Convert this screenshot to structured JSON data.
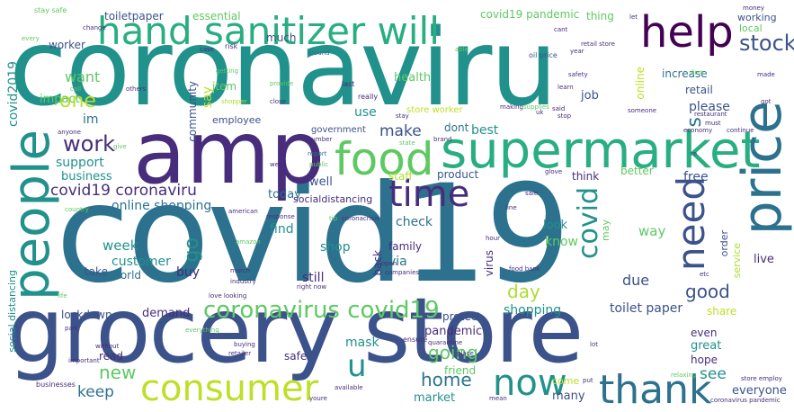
{
  "image_description": "",
  "palette": {
    "teal": "#21918c",
    "teal_dark": "#2c728e",
    "blue": "#3b528b",
    "indigo": "#472d7b",
    "purple": "#440154",
    "green": "#5ec962",
    "green_dark": "#28ae80",
    "lime": "#addc30",
    "yellow_green": "#bddf26",
    "background": "#ffffff"
  },
  "words": {
    "coronaviru": "coronaviru",
    "covid19": "covid19",
    "grocery_store": "grocery store",
    "amp": "amp",
    "supermarket": "supermarket",
    "hand_sanitizer_will": "hand sanitizer will",
    "help": "help",
    "people": "people",
    "food": "food",
    "price": "price",
    "time": "time",
    "need": "need",
    "consumer": "consumer",
    "thank": "thank",
    "now": "now",
    "u": "u",
    "covid": "covid",
    "coronavirus_covid19": "coronavirus covid19",
    "stock": "stock",
    "work": "work",
    "one": "one",
    "covid19_coronaviru": "covid19 coronaviru",
    "online_shopping": "online shopping",
    "s": "s",
    "day": "day",
    "go": "go",
    "new": "new",
    "keep": "keep",
    "home": "home",
    "going": "going",
    "good": "good",
    "make": "make",
    "want": "want",
    "im": "im",
    "support": "support",
    "business": "business",
    "impact": "impact",
    "customer": "customer",
    "week": "week",
    "shop": "shop",
    "find": "find",
    "check": "check",
    "know": "know",
    "look": "look",
    "way": "way",
    "due": "due",
    "free": "free",
    "see": "see",
    "everyone": "everyone",
    "shopping": "shopping",
    "mask": "mask",
    "lockdown": "lockdown",
    "demand": "demand",
    "toilet_paper": "toilet paper",
    "pandemic": "pandemic",
    "protect": "protect",
    "market": "market",
    "many": "many",
    "friend": "friend",
    "read": "read",
    "safe": "safe",
    "via": "via",
    "still": "still",
    "family": "family",
    "buy": "buy",
    "take": "take",
    "world": "world",
    "today": "today",
    "well": "well",
    "socialdistancing": "socialdistancing",
    "government": "government",
    "use": "use",
    "health": "health",
    "job": "job",
    "please": "please",
    "retail": "retail",
    "increase": "increase",
    "working": "working",
    "local": "local",
    "thing": "thing",
    "covid19_pandemic": "covid19 pandemic",
    "much": "much",
    "essential": "essential",
    "toiletpaper": "toiletpaper",
    "worker": "worker",
    "community": "community",
    "employee": "employee",
    "item": "item",
    "say": "say",
    "covid2019": "covid2019",
    "store_worker": "store worker",
    "dont": "dont",
    "best": "best",
    "staff": "staff",
    "product": "product",
    "think": "think",
    "better": "better",
    "online": "online",
    "social_distancing": "social distancing",
    "back": "back",
    "hope": "hope",
    "great": "great",
    "even": "even",
    "share": "share",
    "service": "service",
    "order": "order",
    "live": "live",
    "come": "come",
    "ensure": "ensure",
    "virus": "virus",
    "may": "may",
    "oil_price": "oil price",
    "stay_safe": "stay safe",
    "last": "last",
    "really": "really",
    "supplies": "supplies",
    "risk": "risk",
    "case": "case",
    "around": "around",
    "getting": "getting",
    "shopper": "shopper",
    "close": "close",
    "provide": "provide",
    "change": "change",
    "every": "every",
    "call": "call",
    "others": "others",
    "anyone": "anyone",
    "give": "give",
    "number": "number",
    "report": "report",
    "public": "public",
    "went": "went",
    "state": "state",
    "brand": "brand",
    "stay": "stay",
    "making": "making",
    "uk": "uk",
    "said": "said",
    "stop": "stop",
    "learn": "learn",
    "safety": "safety",
    "first": "first",
    "made": "made",
    "got": "got",
    "money": "money",
    "restaurant": "restaurant",
    "must": "must",
    "continue": "continue",
    "economy": "economy",
    "someone": "someone",
    "retail_store": "retail store",
    "year": "year",
    "cant": "cant",
    "able": "able",
    "let": "let",
    "re": "re",
    "coronacrisis": "coronacrisis",
    "tip": "tip",
    "response": "response",
    "american": "american",
    "country": "country",
    "glove": "glove",
    "sale": "sale",
    "line": "line",
    "hour": "hour",
    "open": "open",
    "companies": "companies",
    "food_bank": "food bank",
    "etc": "etc",
    "amazon": "amazon",
    "march": "march",
    "industry": "industry",
    "right_now": "right now",
    "love_looking": "love looking",
    "life": "life",
    "part": "part",
    "without": "without",
    "important": "important",
    "businesses": "businesses",
    "buying": "buying",
    "retailer": "retailer",
    "everything": "everything",
    "available": "available",
    "youre": "youre",
    "mean": "mean",
    "quarantine": "quarantine",
    "lot": "lot",
    "put": "put",
    "relaxing": "relaxing",
    "store_employ": "store employ",
    "coronavirus_pandemic": "coronavirus pandemic",
    "place": "place"
  }
}
